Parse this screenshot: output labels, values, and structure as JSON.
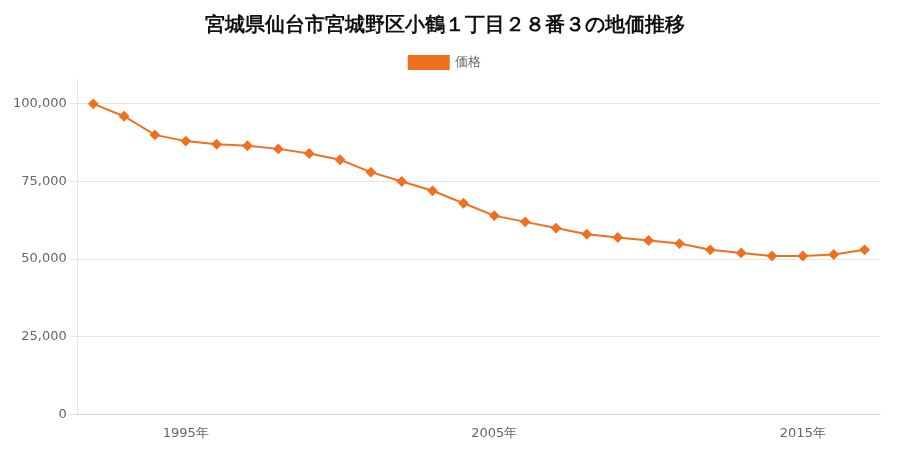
{
  "chart_data": {
    "type": "line",
    "title": "宮城県仙台市宮城野区小鶴１丁目２８番３の地価推移",
    "x": [
      1992,
      1993,
      1994,
      1995,
      1996,
      1997,
      1998,
      1999,
      2000,
      2001,
      2002,
      2003,
      2004,
      2005,
      2006,
      2007,
      2008,
      2009,
      2010,
      2011,
      2012,
      2013,
      2014,
      2015,
      2016,
      2017
    ],
    "series": [
      {
        "name": "価格",
        "color": "#f07020",
        "marker": "diamond",
        "values": [
          100000,
          96000,
          90000,
          88000,
          87000,
          86500,
          85500,
          84000,
          82000,
          78000,
          75000,
          72000,
          68000,
          64000,
          62000,
          60000,
          58000,
          57000,
          56000,
          55000,
          53000,
          52000,
          51000,
          51000,
          51500,
          53000
        ]
      }
    ],
    "xlim": [
      1991.5,
      2017.5
    ],
    "xticks": [
      {
        "value": 1995,
        "label": "1995年"
      },
      {
        "value": 2005,
        "label": "2005年"
      },
      {
        "value": 2015,
        "label": "2015年"
      }
    ],
    "ylim": [
      0,
      108000
    ],
    "yticks": [
      0,
      {
        "value": 25000,
        "label": "25,000"
      },
      {
        "value": 50000,
        "label": "50,000"
      },
      {
        "value": 75000,
        "label": "75,000"
      },
      {
        "value": 100000,
        "label": "100,000"
      }
    ],
    "grid": "y",
    "legend": "top"
  }
}
